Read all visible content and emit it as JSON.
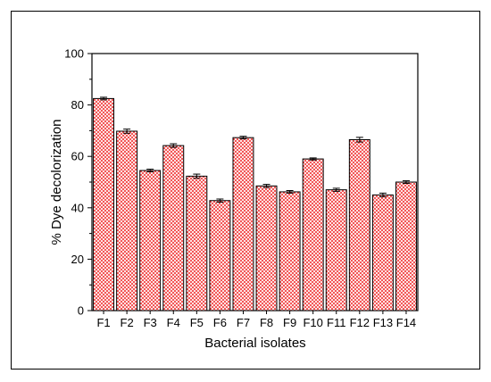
{
  "chart_data": {
    "type": "bar",
    "title": "",
    "xlabel": "Bacterial isolates",
    "ylabel": "% Dye decolorization",
    "ylim": [
      0,
      100
    ],
    "yticks": [
      "0",
      "20",
      "40",
      "60",
      "80",
      "100"
    ],
    "categories": [
      "F1",
      "F2",
      "F3",
      "F4",
      "F5",
      "F6",
      "F7",
      "F8",
      "F9",
      "F10",
      "F11",
      "F12",
      "F13",
      "F14"
    ],
    "values": [
      82.5,
      69.8,
      54.5,
      64.2,
      52.3,
      42.8,
      67.3,
      48.5,
      46.2,
      59.0,
      47.0,
      66.5,
      45.0,
      50.0
    ],
    "errors": [
      0.5,
      0.8,
      0.5,
      0.7,
      0.8,
      0.6,
      0.5,
      0.6,
      0.5,
      0.4,
      0.6,
      0.9,
      0.7,
      0.5
    ],
    "bar_color": "#f02d2d",
    "pattern": "crosshatch",
    "grid": false,
    "legend": "none"
  }
}
